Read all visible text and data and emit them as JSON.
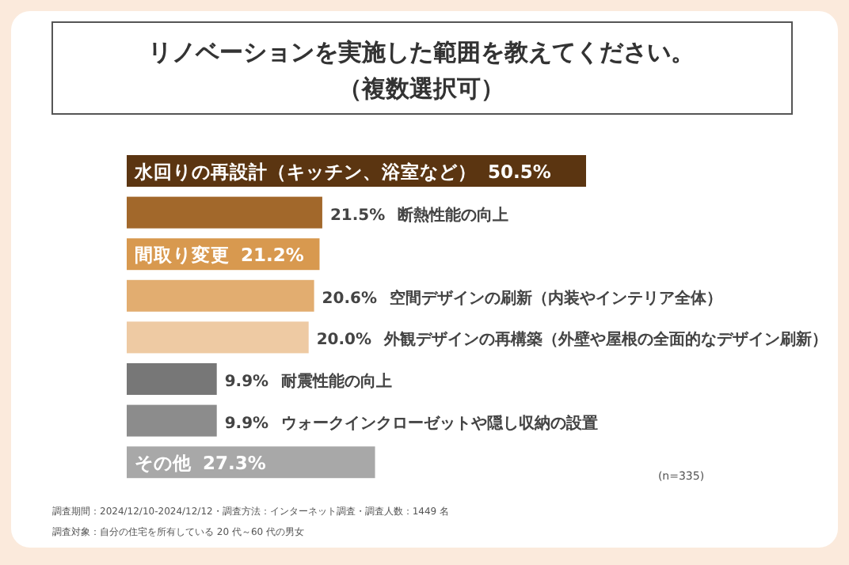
{
  "chart_data": {
    "type": "bar",
    "orientation": "horizontal",
    "title": "リノベーションを実施した範囲を教えてください。",
    "subtitle": "（複数選択可）",
    "categories": [
      "水回りの再設計（キッチン、浴室など）",
      "断熱性能の向上",
      "間取り変更",
      "空間デザインの刷新（内装やインテリア全体）",
      "外観デザインの再構築（外壁や屋根の全面的なデザイン刷新）",
      "耐震性能の向上",
      "ウォークインクローゼットや隠し収納の設置",
      "その他"
    ],
    "values": [
      50.5,
      21.5,
      21.2,
      20.6,
      20.0,
      9.9,
      9.9,
      27.3
    ],
    "value_labels": [
      "50.5%",
      "21.5%",
      "21.2%",
      "20.6%",
      "20.0%",
      "9.9%",
      "9.9%",
      "27.3%"
    ],
    "colors": [
      "#5b3511",
      "#a2682b",
      "#d8994f",
      "#e2ad70",
      "#eecaa3",
      "#777777",
      "#8c8c8c",
      "#a8a8a8"
    ],
    "annotations": [
      "(n=335)",
      "調査期間：2024/12/10-2024/12/12・調査方法：インターネット調査・調査人数：1449 名",
      "調査対象：自分の住宅を所有している 20 代～60 代の男女"
    ]
  }
}
